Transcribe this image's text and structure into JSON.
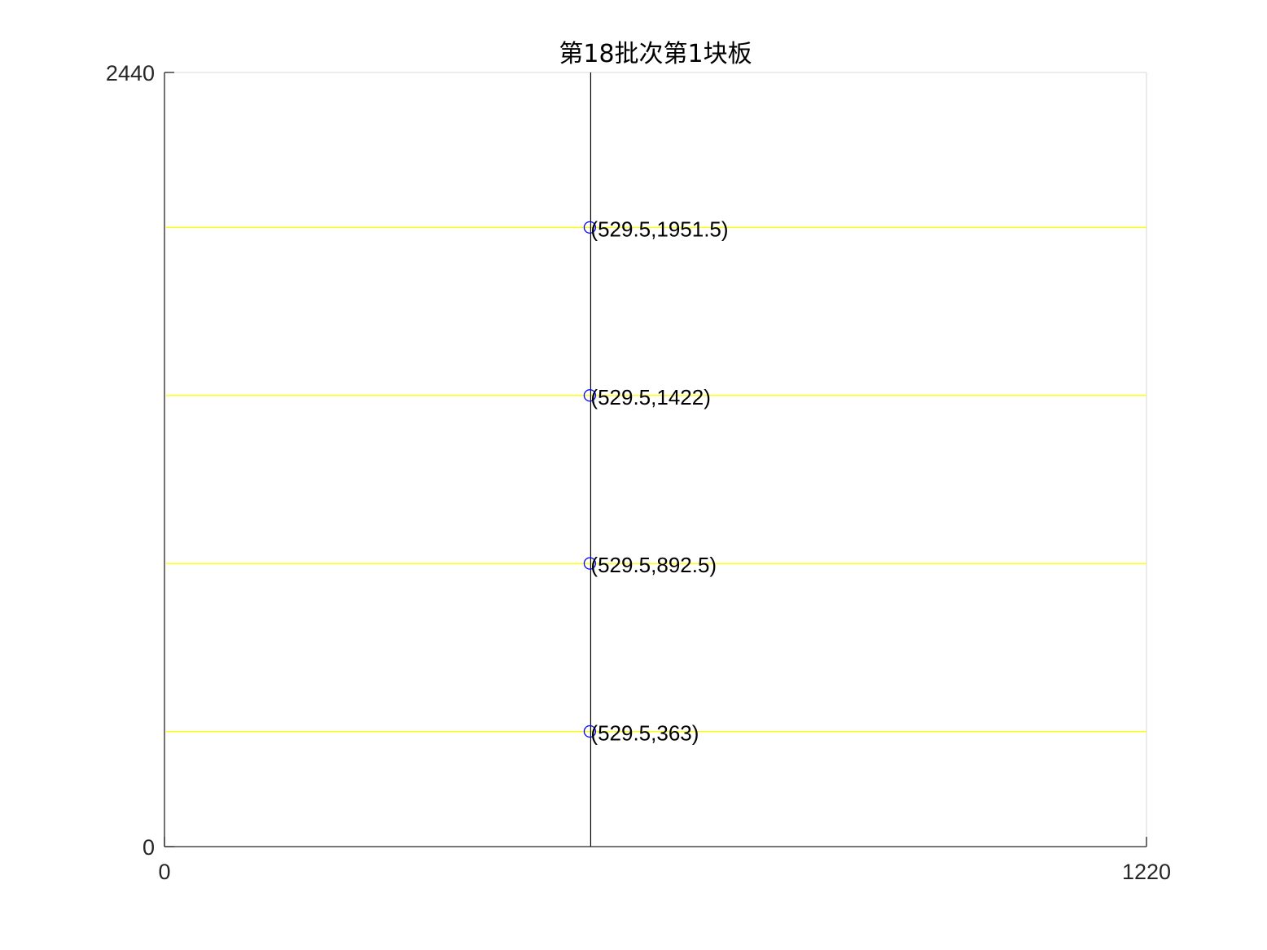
{
  "chart_data": {
    "type": "scatter",
    "title": "第18批次第1块板",
    "xlabel": "",
    "ylabel": "",
    "xlim": [
      0,
      1220
    ],
    "ylim": [
      0,
      2440
    ],
    "x_ticks": [
      "0",
      "1220"
    ],
    "y_ticks": [
      "0",
      "2440"
    ],
    "grid": false,
    "legend": "none",
    "vertical_cut_lines": [
      {
        "x": 529.5,
        "y_from": 0,
        "y_to": 2440,
        "color": "#000000"
      }
    ],
    "horizontal_cut_lines": [
      {
        "y": 1951.5,
        "x_from": 0,
        "x_to": 1220,
        "color": "#ffff00"
      },
      {
        "y": 1422,
        "x_from": 0,
        "x_to": 1220,
        "color": "#ffff00"
      },
      {
        "y": 892.5,
        "x_from": 0,
        "x_to": 1220,
        "color": "#ffff00"
      },
      {
        "y": 363,
        "x_from": 0,
        "x_to": 1220,
        "color": "#ffff00"
      }
    ],
    "points": [
      {
        "x": 529.5,
        "y": 1951.5,
        "label": "(529.5,1951.5)"
      },
      {
        "x": 529.5,
        "y": 1422,
        "label": "(529.5,1422)"
      },
      {
        "x": 529.5,
        "y": 892.5,
        "label": "(529.5,892.5)"
      },
      {
        "x": 529.5,
        "y": 363,
        "label": "(529.5,363)"
      }
    ],
    "marker": {
      "shape": "circle",
      "color": "#0000ff"
    },
    "axis_color": "#262626",
    "box_color": "#e0e0e0"
  }
}
